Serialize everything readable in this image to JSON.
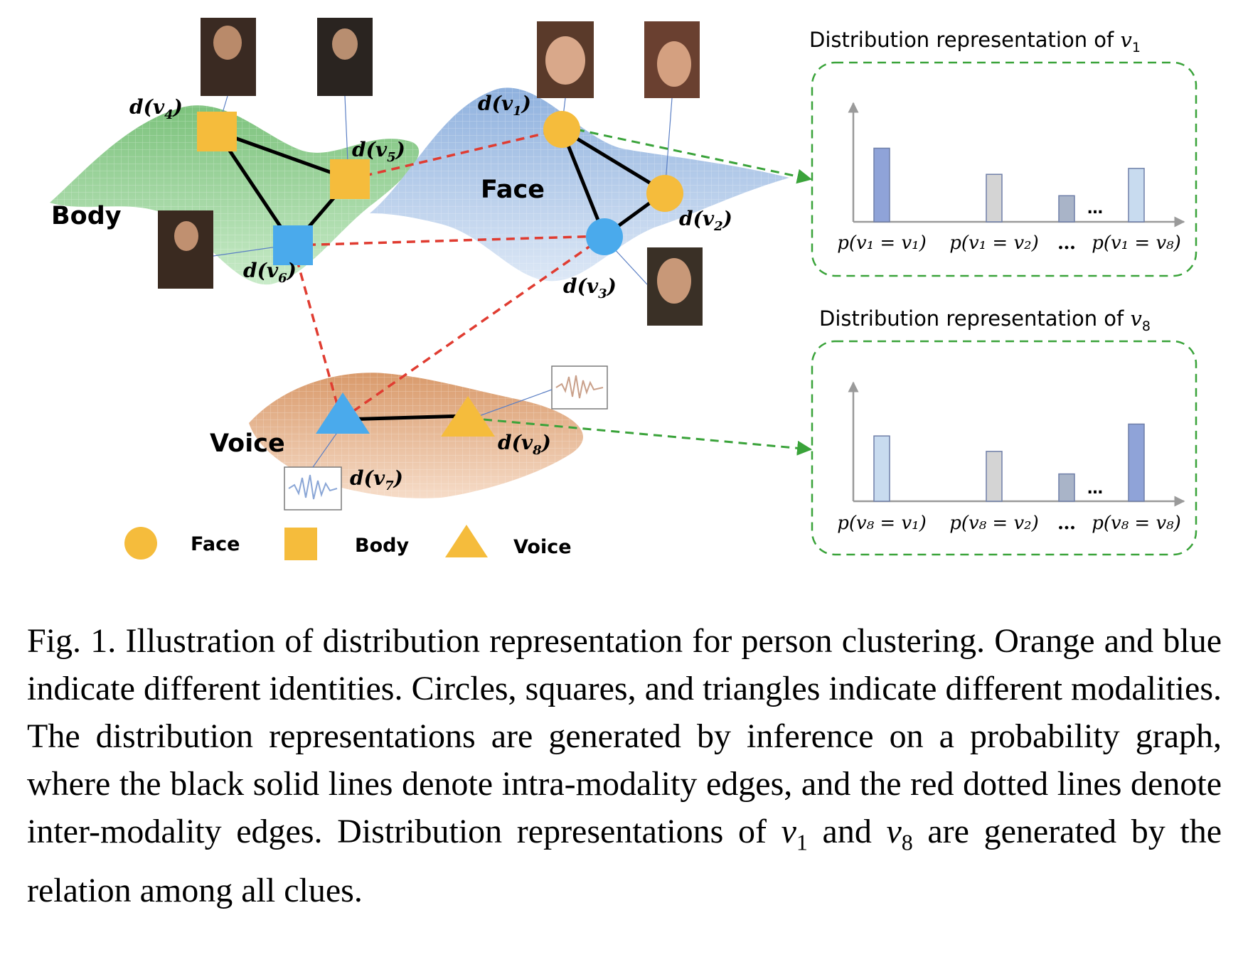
{
  "layers": {
    "body": "Body",
    "face": "Face",
    "voice": "Voice"
  },
  "nodes": {
    "v1": {
      "sym": "v",
      "sub": "1",
      "wrap": "d"
    },
    "v2": {
      "sym": "v",
      "sub": "2",
      "wrap": "d"
    },
    "v3": {
      "sym": "v",
      "sub": "3",
      "wrap": "d"
    },
    "v4": {
      "sym": "v",
      "sub": "4",
      "wrap": "d"
    },
    "v5": {
      "sym": "v",
      "sub": "5",
      "wrap": "d"
    },
    "v6": {
      "sym": "v",
      "sub": "6",
      "wrap": "d"
    },
    "v7": {
      "sym": "v",
      "sub": "7",
      "wrap": "d"
    },
    "v8": {
      "sym": "v",
      "sub": "8",
      "wrap": "d"
    }
  },
  "legend": {
    "face": "Face",
    "body": "Body",
    "voice": "Voice"
  },
  "panels": {
    "p1": {
      "title_text": "Distribution representation of ",
      "title_sym": "v",
      "title_sub": "1",
      "labels": [
        "p(v₁ = v₁)",
        "p(v₁ = v₂)",
        "…",
        "p(v₁ = v₈)"
      ],
      "ellipsis": "…"
    },
    "p8": {
      "title_text": "Distribution representation of ",
      "title_sym": "v",
      "title_sub": "8",
      "labels": [
        "p(v₈ = v₁)",
        "p(v₈ = v₂)",
        "…",
        "p(v₈ = v₈)"
      ],
      "ellipsis": "…"
    }
  },
  "chart_data": [
    {
      "type": "bar",
      "categories": [
        "p(v1 = v1)",
        "p(v1 = v2)",
        "…",
        "p(v1 = v8)"
      ],
      "values": [
        0.62,
        0.4,
        0.22,
        0.45
      ],
      "ylim": [
        0,
        1
      ],
      "colors": [
        "#8fa3d8",
        "#d4d4d4",
        "#a9b4c8",
        "#c8dbef"
      ],
      "title": "Distribution representation of v1"
    },
    {
      "type": "bar",
      "categories": [
        "p(v8 = v1)",
        "p(v8 = v2)",
        "…",
        "p(v8 = v8)"
      ],
      "values": [
        0.55,
        0.42,
        0.23,
        0.65
      ],
      "ylim": [
        0,
        1
      ],
      "colors": [
        "#c8dbef",
        "#d4d4d4",
        "#a9b4c8",
        "#8fa3d8"
      ],
      "title": "Distribution representation of v8"
    }
  ],
  "colors": {
    "orange": "#f5bc3c",
    "blue": "#4aaaec",
    "intra_edge": "#000000",
    "inter_edge": "#e03c31",
    "panel_edge": "#3aa33a",
    "body_surface": "#8fcf8f",
    "face_surface": "#a9c4e6",
    "voice_surface": "#e7b48f"
  },
  "caption": {
    "text_a": "Fig. 1.  Illustration of distribution representation for person clustering. Orange and blue indicate different identities. Circles, squares, and triangles indicate different modalities. The distribution representations are generated by inference on a probability graph, where the black solid lines denote intra-modality edges, and the red dotted lines denote inter-modality edges. Distribution representations of ",
    "sym1": "v",
    "sub1": "1",
    "text_b": " and ",
    "sym2": "v",
    "sub2": "8",
    "text_c": " are generated by the relation among all clues."
  }
}
